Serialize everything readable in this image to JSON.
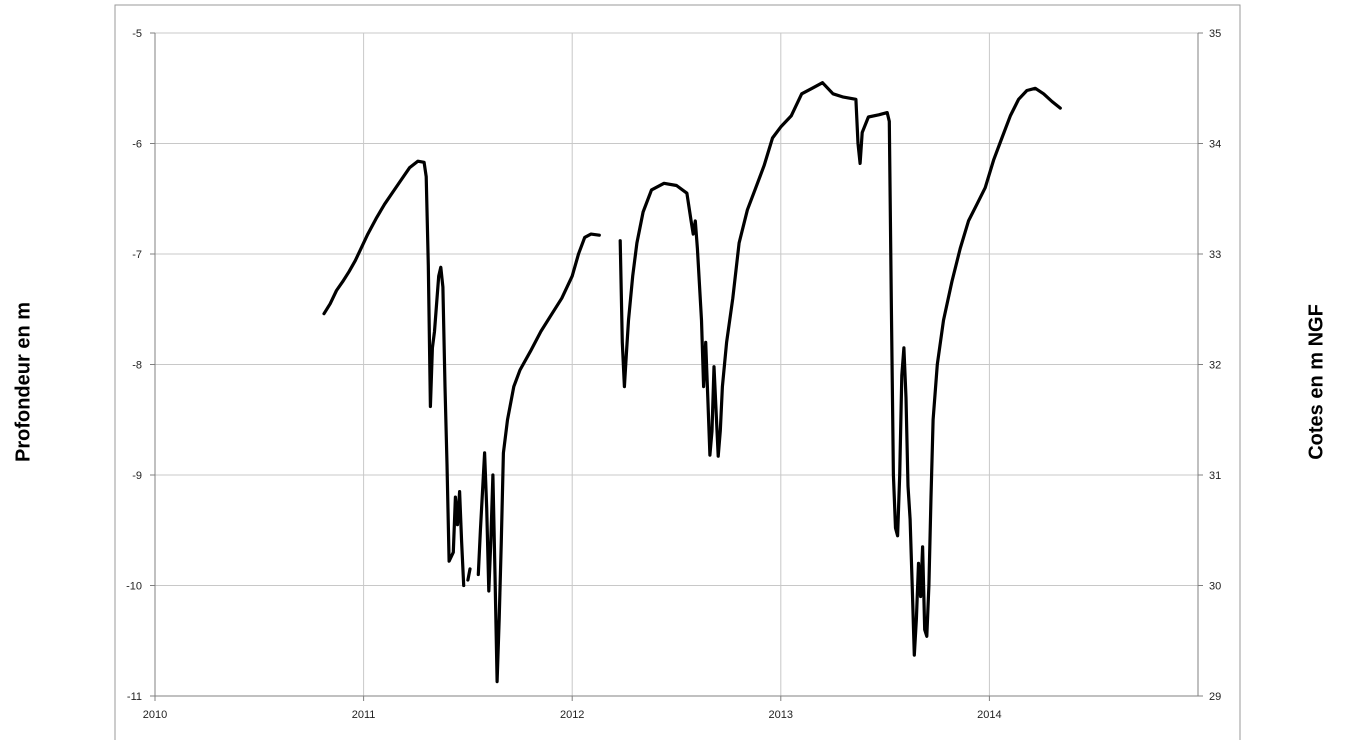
{
  "chart_data": {
    "type": "line",
    "title": "",
    "xlabel": "",
    "ylabel": "Profondeur en m",
    "y2label": "Cotes en m NGF",
    "xlim": [
      2010,
      2015
    ],
    "ylim": [
      -11,
      -5
    ],
    "y2lim": [
      29,
      35
    ],
    "x_ticks": [
      "2010",
      "2011",
      "2012",
      "2013",
      "2014"
    ],
    "y_ticks": [
      "-5",
      "-6",
      "-7",
      "-8",
      "-9",
      "-10",
      "-11"
    ],
    "y2_ticks": [
      "35",
      "34",
      "33",
      "32",
      "31",
      "30",
      "29"
    ],
    "grid": true,
    "line_color": "#000000",
    "series": [
      {
        "segments": [
          [
            [
              2010.81,
              -7.54
            ],
            [
              2010.84,
              -7.45
            ],
            [
              2010.87,
              -7.33
            ],
            [
              2010.9,
              -7.25
            ],
            [
              2010.93,
              -7.16
            ],
            [
              2010.96,
              -7.06
            ],
            [
              2010.99,
              -6.94
            ],
            [
              2011.02,
              -6.82
            ],
            [
              2011.06,
              -6.68
            ],
            [
              2011.1,
              -6.55
            ],
            [
              2011.14,
              -6.44
            ],
            [
              2011.18,
              -6.33
            ],
            [
              2011.22,
              -6.22
            ],
            [
              2011.26,
              -6.16
            ],
            [
              2011.29,
              -6.17
            ],
            [
              2011.3,
              -6.3
            ],
            [
              2011.31,
              -7.1
            ],
            [
              2011.32,
              -8.38
            ],
            [
              2011.33,
              -7.85
            ],
            [
              2011.34,
              -7.7
            ],
            [
              2011.36,
              -7.2
            ],
            [
              2011.37,
              -7.12
            ],
            [
              2011.38,
              -7.3
            ],
            [
              2011.39,
              -8.2
            ],
            [
              2011.4,
              -8.9
            ],
            [
              2011.41,
              -9.78
            ],
            [
              2011.43,
              -9.7
            ],
            [
              2011.44,
              -9.2
            ],
            [
              2011.45,
              -9.45
            ],
            [
              2011.46,
              -9.15
            ],
            [
              2011.47,
              -9.6
            ],
            [
              2011.48,
              -10.0
            ]
          ],
          [
            [
              2011.5,
              -9.95
            ],
            [
              2011.51,
              -9.85
            ]
          ],
          [
            [
              2011.55,
              -9.9
            ],
            [
              2011.56,
              -9.5
            ],
            [
              2011.58,
              -8.8
            ],
            [
              2011.59,
              -9.3
            ],
            [
              2011.6,
              -10.05
            ],
            [
              2011.61,
              -9.6
            ],
            [
              2011.62,
              -9.0
            ],
            [
              2011.63,
              -9.9
            ],
            [
              2011.64,
              -10.87
            ],
            [
              2011.65,
              -10.3
            ],
            [
              2011.66,
              -9.6
            ],
            [
              2011.67,
              -8.8
            ],
            [
              2011.69,
              -8.5
            ],
            [
              2011.72,
              -8.2
            ],
            [
              2011.75,
              -8.05
            ],
            [
              2011.8,
              -7.88
            ],
            [
              2011.85,
              -7.7
            ],
            [
              2011.9,
              -7.55
            ],
            [
              2011.95,
              -7.4
            ],
            [
              2012.0,
              -7.2
            ],
            [
              2012.03,
              -7.0
            ],
            [
              2012.06,
              -6.85
            ],
            [
              2012.09,
              -6.82
            ],
            [
              2012.13,
              -6.83
            ]
          ],
          [
            [
              2012.23,
              -6.88
            ],
            [
              2012.24,
              -7.8
            ],
            [
              2012.25,
              -8.2
            ],
            [
              2012.26,
              -7.9
            ],
            [
              2012.27,
              -7.6
            ],
            [
              2012.29,
              -7.2
            ],
            [
              2012.31,
              -6.9
            ],
            [
              2012.34,
              -6.62
            ],
            [
              2012.38,
              -6.42
            ],
            [
              2012.44,
              -6.36
            ],
            [
              2012.5,
              -6.38
            ],
            [
              2012.55,
              -6.45
            ],
            [
              2012.57,
              -6.7
            ],
            [
              2012.58,
              -6.82
            ],
            [
              2012.59,
              -6.7
            ],
            [
              2012.6,
              -6.95
            ],
            [
              2012.62,
              -7.6
            ],
            [
              2012.63,
              -8.2
            ],
            [
              2012.64,
              -7.8
            ],
            [
              2012.65,
              -8.3
            ],
            [
              2012.66,
              -8.82
            ],
            [
              2012.67,
              -8.6
            ],
            [
              2012.68,
              -8.02
            ],
            [
              2012.7,
              -8.83
            ],
            [
              2012.71,
              -8.6
            ],
            [
              2012.72,
              -8.2
            ],
            [
              2012.74,
              -7.8
            ],
            [
              2012.77,
              -7.4
            ],
            [
              2012.8,
              -6.9
            ],
            [
              2012.84,
              -6.6
            ],
            [
              2012.88,
              -6.4
            ],
            [
              2012.92,
              -6.2
            ],
            [
              2012.96,
              -5.95
            ],
            [
              2013.0,
              -5.85
            ],
            [
              2013.05,
              -5.75
            ],
            [
              2013.1,
              -5.55
            ],
            [
              2013.15,
              -5.5
            ],
            [
              2013.2,
              -5.45
            ],
            [
              2013.25,
              -5.55
            ],
            [
              2013.3,
              -5.58
            ],
            [
              2013.36,
              -5.6
            ],
            [
              2013.37,
              -6.0
            ],
            [
              2013.38,
              -6.18
            ],
            [
              2013.39,
              -5.9
            ],
            [
              2013.42,
              -5.76
            ],
            [
              2013.47,
              -5.74
            ],
            [
              2013.51,
              -5.72
            ],
            [
              2013.52,
              -5.8
            ],
            [
              2013.53,
              -7.5
            ],
            [
              2013.54,
              -9.0
            ],
            [
              2013.55,
              -9.48
            ],
            [
              2013.56,
              -9.55
            ],
            [
              2013.57,
              -9.0
            ],
            [
              2013.58,
              -8.1
            ],
            [
              2013.59,
              -7.85
            ],
            [
              2013.6,
              -8.3
            ],
            [
              2013.61,
              -9.1
            ],
            [
              2013.62,
              -9.4
            ],
            [
              2013.63,
              -10.0
            ],
            [
              2013.64,
              -10.63
            ],
            [
              2013.65,
              -10.3
            ],
            [
              2013.66,
              -9.8
            ],
            [
              2013.67,
              -10.1
            ],
            [
              2013.68,
              -9.65
            ],
            [
              2013.69,
              -10.4
            ],
            [
              2013.7,
              -10.46
            ],
            [
              2013.71,
              -10.0
            ],
            [
              2013.72,
              -9.2
            ],
            [
              2013.73,
              -8.5
            ],
            [
              2013.75,
              -8.0
            ],
            [
              2013.78,
              -7.6
            ],
            [
              2013.82,
              -7.25
            ],
            [
              2013.86,
              -6.95
            ],
            [
              2013.9,
              -6.7
            ],
            [
              2013.94,
              -6.55
            ],
            [
              2013.98,
              -6.4
            ],
            [
              2014.02,
              -6.15
            ],
            [
              2014.06,
              -5.95
            ],
            [
              2014.1,
              -5.75
            ],
            [
              2014.14,
              -5.6
            ],
            [
              2014.18,
              -5.52
            ],
            [
              2014.22,
              -5.5
            ],
            [
              2014.26,
              -5.55
            ],
            [
              2014.3,
              -5.62
            ],
            [
              2014.34,
              -5.68
            ]
          ]
        ]
      }
    ]
  }
}
